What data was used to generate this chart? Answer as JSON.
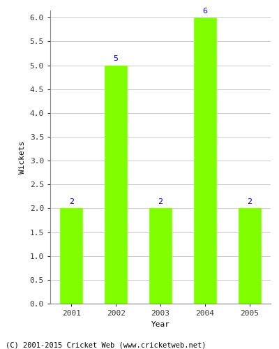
{
  "years": [
    "2001",
    "2002",
    "2003",
    "2004",
    "2005"
  ],
  "values": [
    2,
    5,
    2,
    6,
    2
  ],
  "bar_color": "#7FFF00",
  "bar_edgecolor": "#7FFF00",
  "xlabel": "Year",
  "ylabel": "Wickets",
  "ylim": [
    0.0,
    6.0
  ],
  "yticks": [
    0.0,
    0.5,
    1.0,
    1.5,
    2.0,
    2.5,
    3.0,
    3.5,
    4.0,
    4.5,
    5.0,
    5.5,
    6.0
  ],
  "annotation_color": "#0000CC",
  "annotation_fontsize": 8,
  "grid_color": "#cccccc",
  "footer_text": "(C) 2001-2015 Cricket Web (www.cricketweb.net)",
  "footer_fontsize": 7.5,
  "footer_color": "#000000",
  "bg_color": "#ffffff",
  "axes_bg_color": "#ffffff",
  "tick_fontsize": 8,
  "label_fontsize": 8,
  "bar_width": 0.5
}
